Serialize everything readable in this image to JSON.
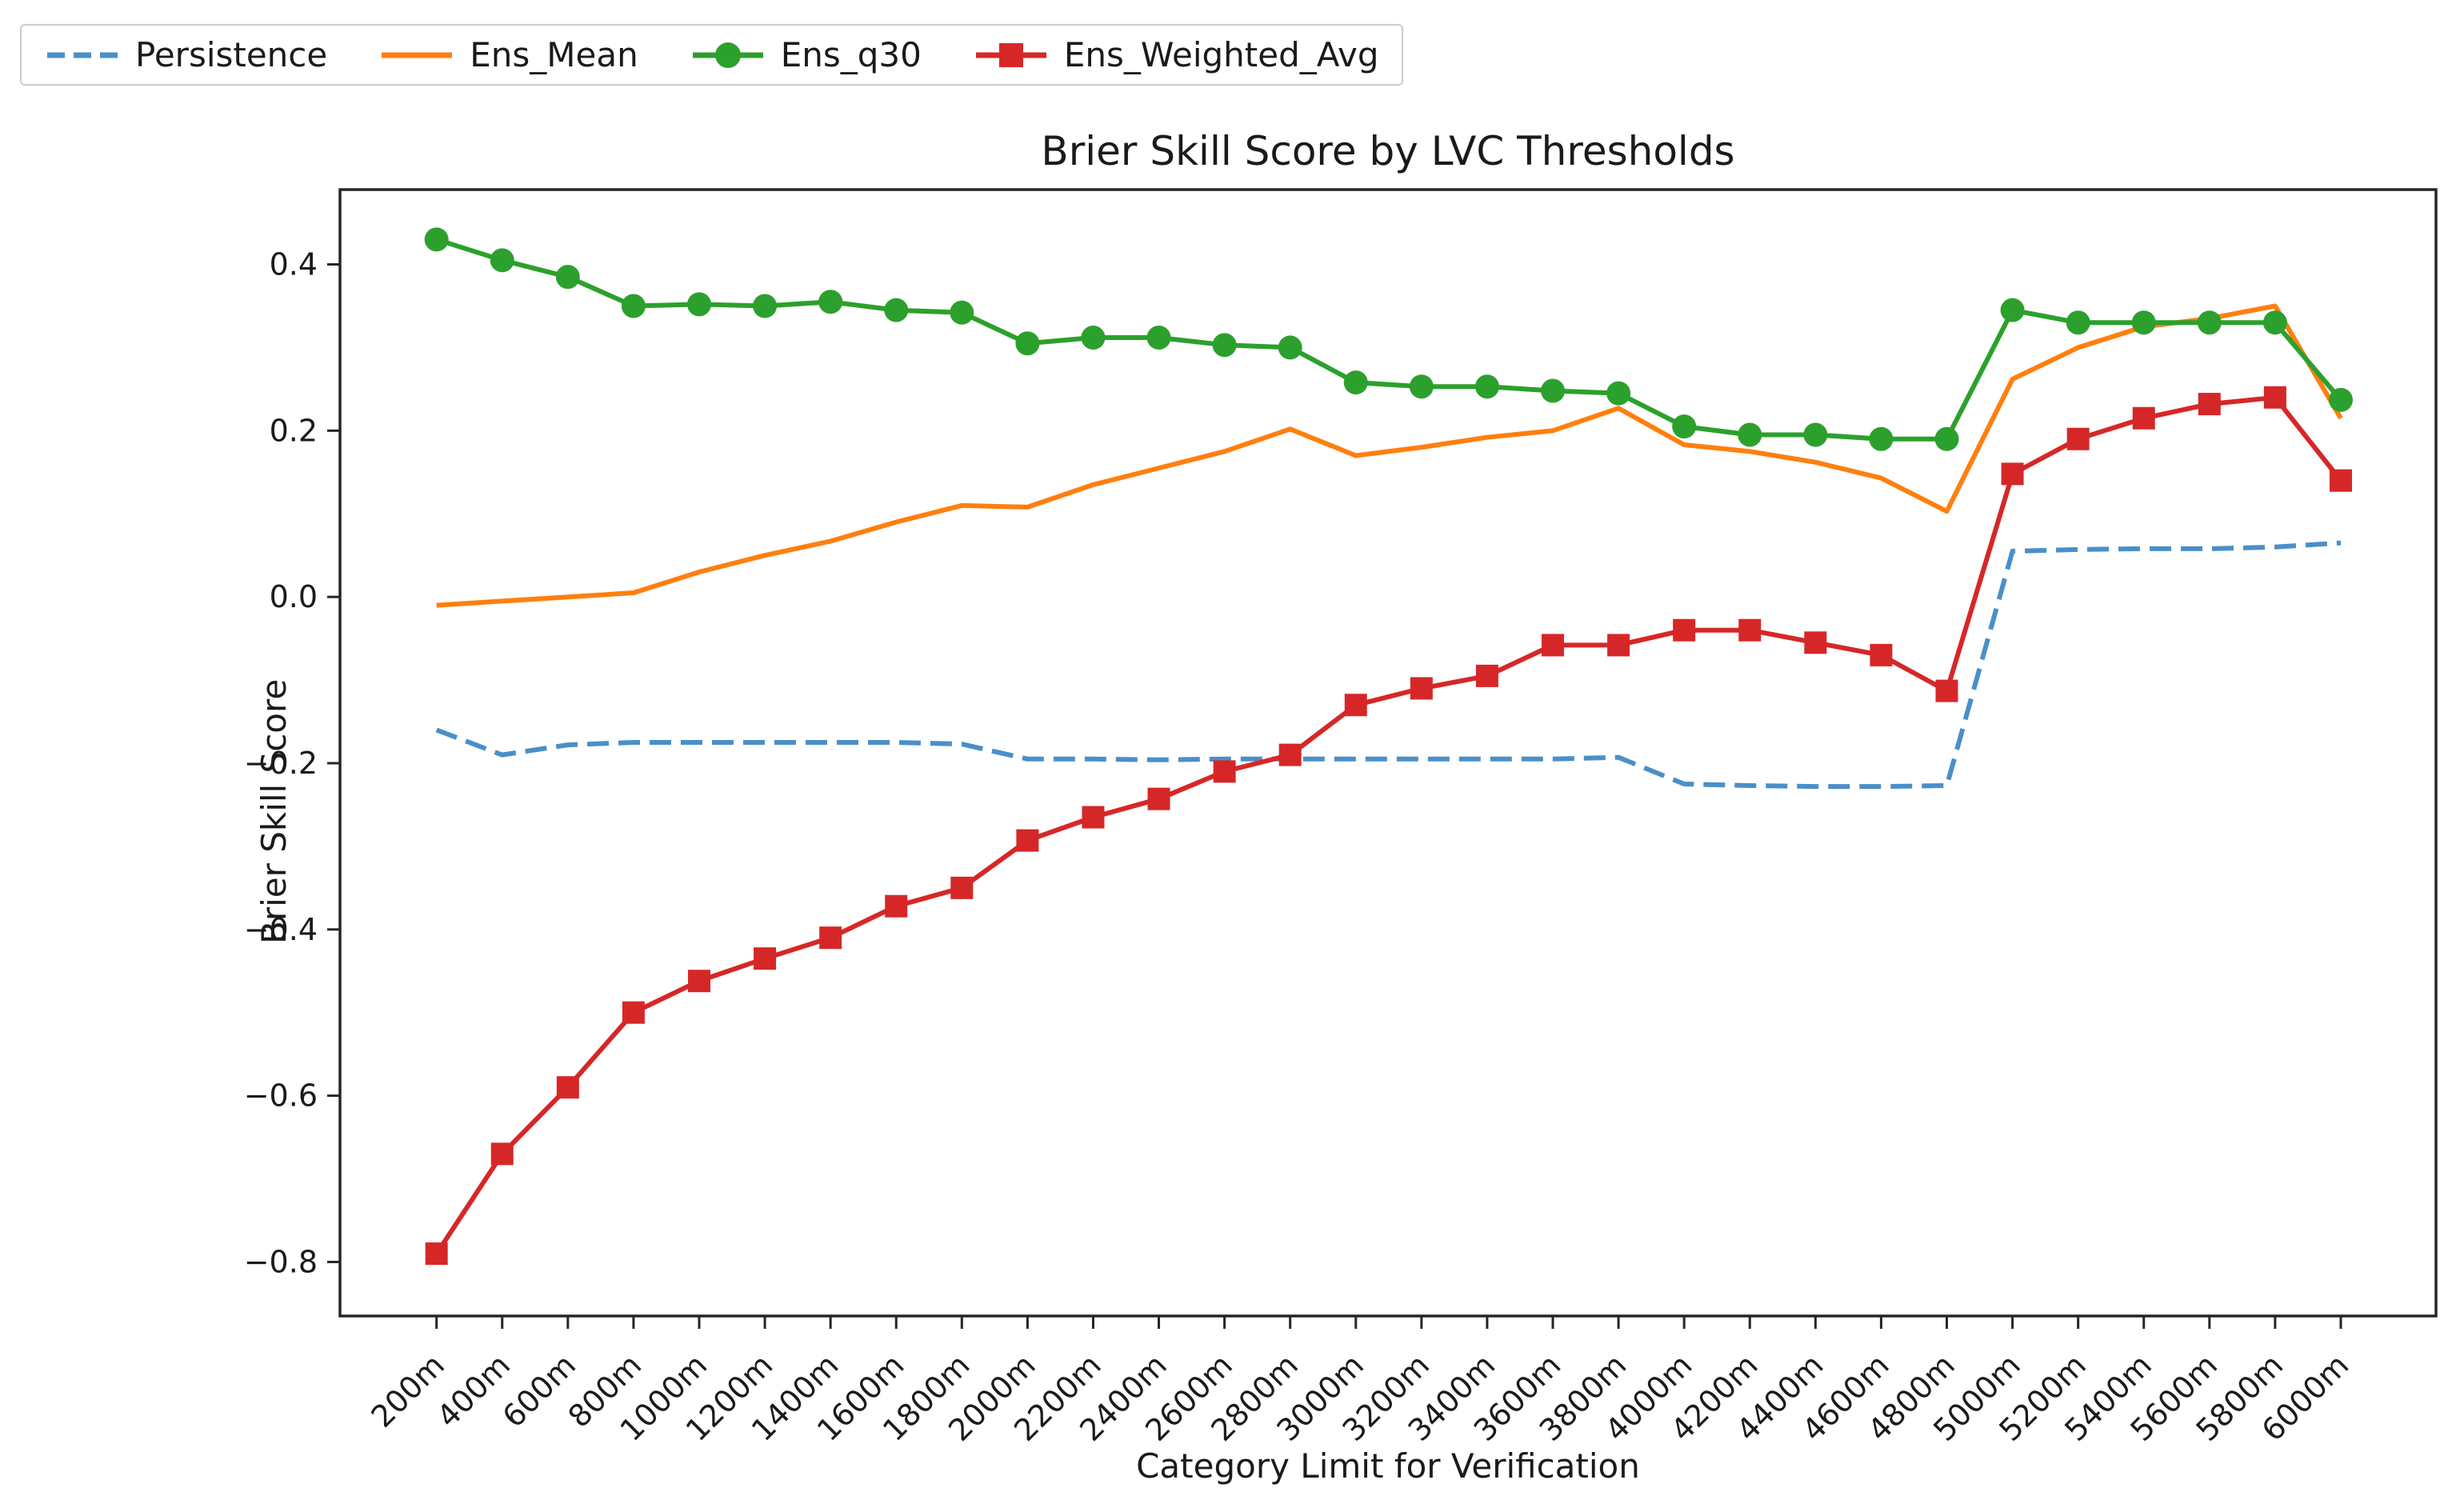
{
  "chart_data": {
    "type": "line",
    "title": "Brier Skill Score by LVC Thresholds",
    "xlabel": "Category Limit for Verification",
    "ylabel": "Brier Skill Score",
    "grid": false,
    "legend_position": "upper-left-outside-above-axes",
    "categories": [
      "200m",
      "400m",
      "600m",
      "800m",
      "1000m",
      "1200m",
      "1400m",
      "1600m",
      "1800m",
      "2000m",
      "2200m",
      "2400m",
      "2600m",
      "2800m",
      "3000m",
      "3200m",
      "3400m",
      "3600m",
      "3800m",
      "4000m",
      "4200m",
      "4400m",
      "4600m",
      "4800m",
      "5000m",
      "5200m",
      "5400m",
      "5600m",
      "5800m",
      "6000m"
    ],
    "yticks": [
      0.4,
      0.2,
      0.0,
      -0.2,
      -0.4,
      -0.6,
      -0.8
    ],
    "ylim": [
      -0.865,
      0.49
    ],
    "xlim_index": [
      -1.47,
      30.45
    ],
    "series": [
      {
        "name": "Persistence",
        "color": "#4a8fc9",
        "style": "dashed",
        "marker": "none",
        "values": [
          -0.16,
          -0.19,
          -0.178,
          -0.175,
          -0.175,
          -0.175,
          -0.175,
          -0.175,
          -0.177,
          -0.195,
          -0.195,
          -0.196,
          -0.195,
          -0.195,
          -0.195,
          -0.195,
          -0.195,
          -0.195,
          -0.193,
          -0.225,
          -0.227,
          -0.228,
          -0.228,
          -0.227,
          0.055,
          0.057,
          0.058,
          0.058,
          0.06,
          0.065
        ]
      },
      {
        "name": "Ens_Mean",
        "color": "#ff7f0e",
        "style": "solid",
        "marker": "none",
        "values": [
          -0.01,
          -0.005,
          0.0,
          0.005,
          0.03,
          0.05,
          0.067,
          0.09,
          0.11,
          0.108,
          0.135,
          0.155,
          0.175,
          0.202,
          0.17,
          0.18,
          0.192,
          0.2,
          0.227,
          0.183,
          0.175,
          0.162,
          0.143,
          0.103,
          0.262,
          0.3,
          0.325,
          0.335,
          0.35,
          0.215
        ]
      },
      {
        "name": "Ens_q30",
        "color": "#2ca02c",
        "style": "solid",
        "marker": "circle",
        "values": [
          0.43,
          0.405,
          0.385,
          0.35,
          0.352,
          0.35,
          0.355,
          0.345,
          0.342,
          0.305,
          0.312,
          0.312,
          0.303,
          0.3,
          0.258,
          0.253,
          0.253,
          0.248,
          0.245,
          0.205,
          0.195,
          0.195,
          0.19,
          0.19,
          0.345,
          0.33,
          0.33,
          0.33,
          0.33,
          0.237
        ]
      },
      {
        "name": "Ens_Weighted_Avg",
        "color": "#d62728",
        "style": "solid",
        "marker": "square",
        "values": [
          -0.79,
          -0.67,
          -0.59,
          -0.5,
          -0.462,
          -0.435,
          -0.41,
          -0.372,
          -0.35,
          -0.293,
          -0.265,
          -0.243,
          -0.21,
          -0.19,
          -0.13,
          -0.11,
          -0.095,
          -0.058,
          -0.058,
          -0.04,
          -0.04,
          -0.055,
          -0.07,
          -0.113,
          0.148,
          0.19,
          0.215,
          0.232,
          0.24,
          0.14
        ]
      }
    ]
  }
}
